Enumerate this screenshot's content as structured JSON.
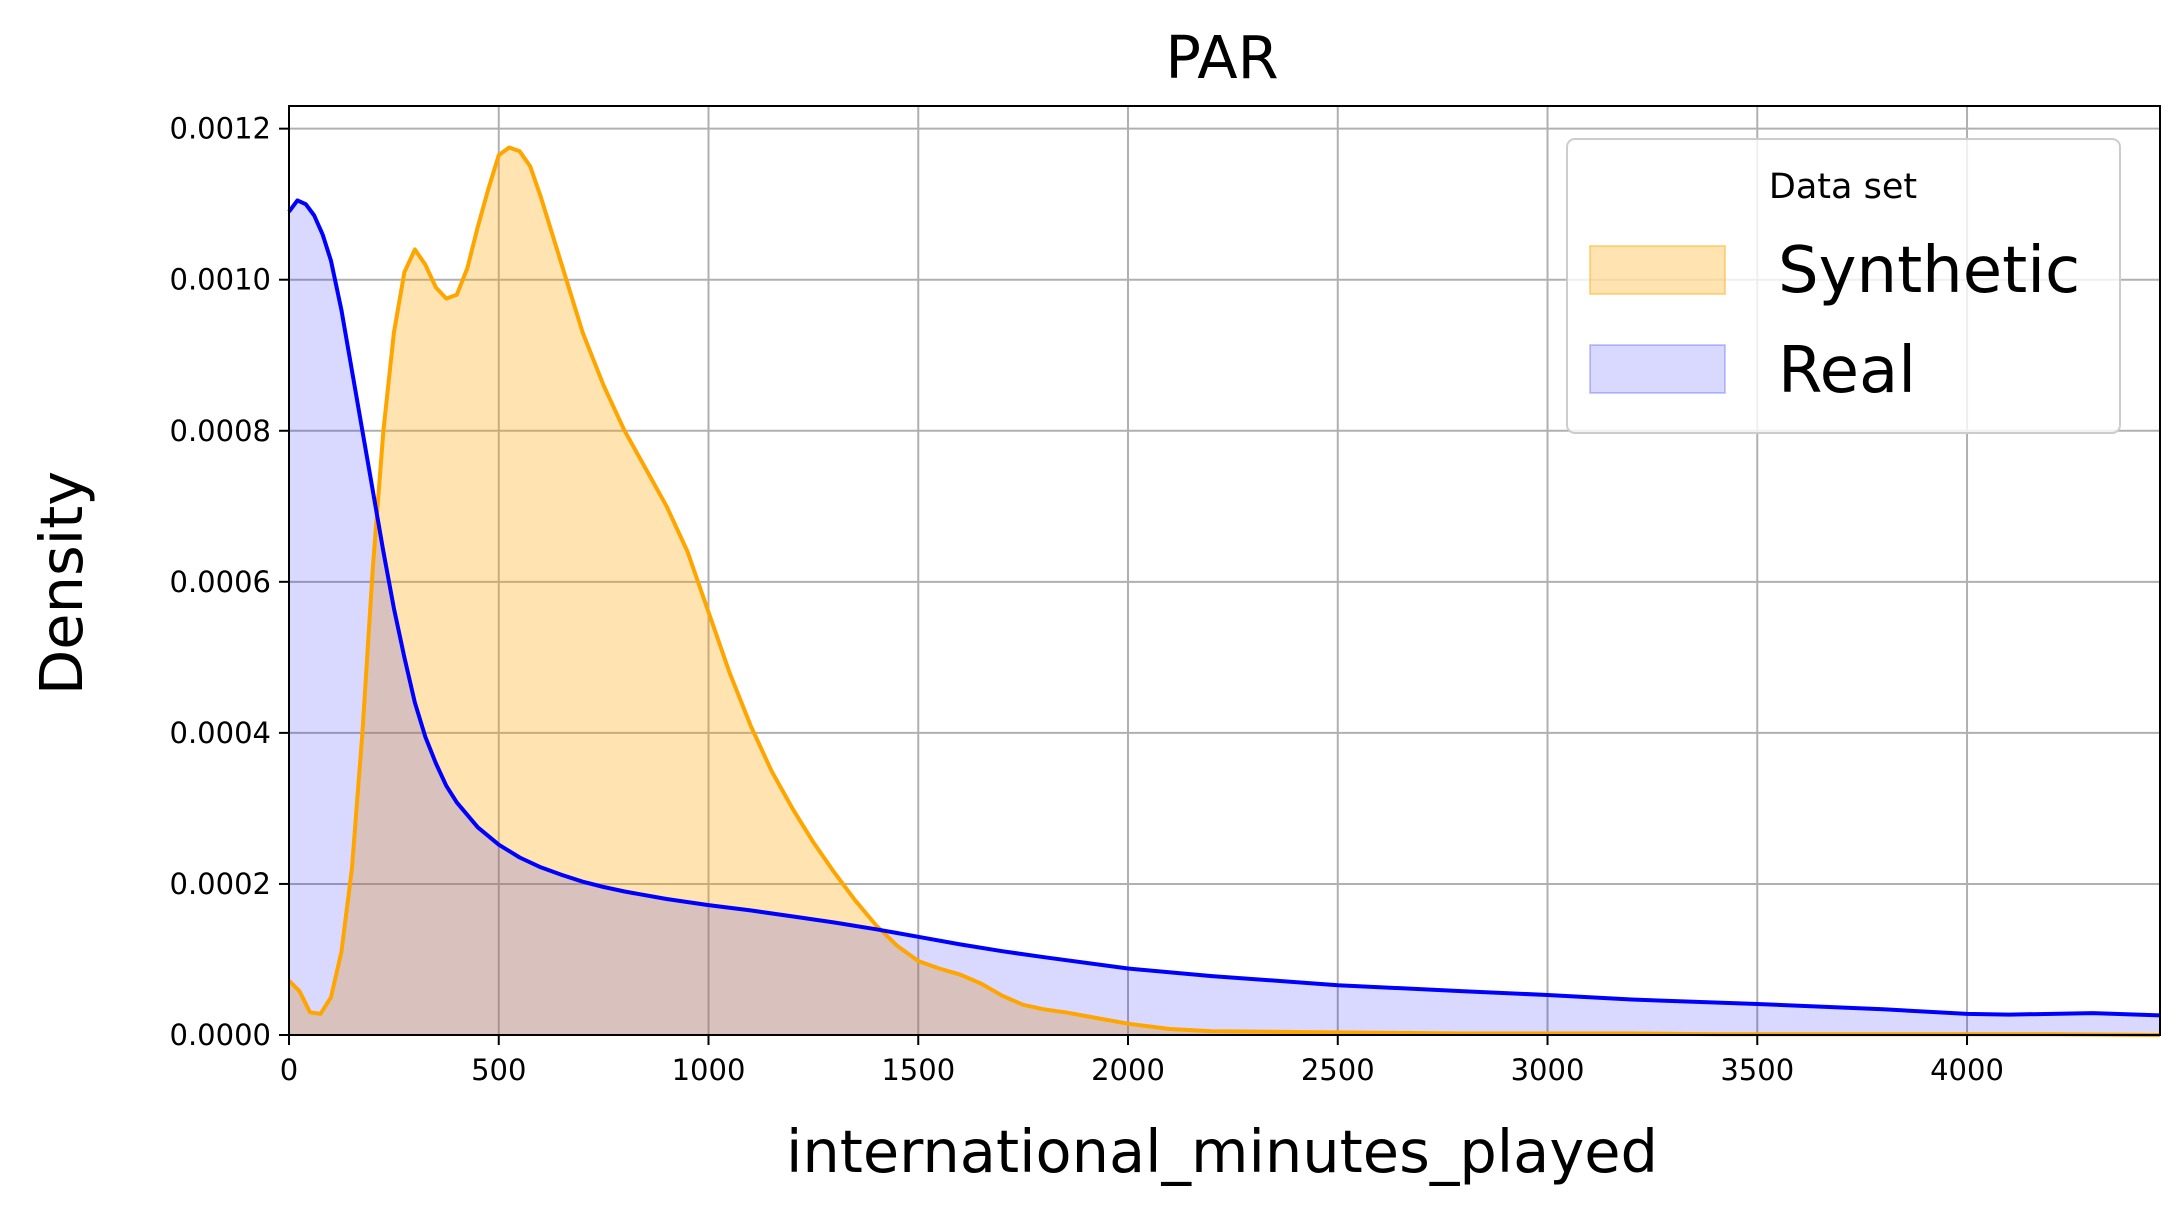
{
  "chart_data": {
    "type": "area",
    "title": "PAR",
    "xlabel": "international_minutes_played",
    "ylabel": "Density",
    "xlim": [
      0,
      4460
    ],
    "ylim": [
      0,
      0.00123
    ],
    "x_ticks": [
      0,
      500,
      1000,
      1500,
      2000,
      2500,
      3000,
      3500,
      4000
    ],
    "x_tick_labels": [
      "0",
      "500",
      "1000",
      "1500",
      "2000",
      "2500",
      "3000",
      "3500",
      "4000"
    ],
    "y_ticks": [
      0,
      0.0002,
      0.0004,
      0.0006,
      0.0008,
      0.001,
      0.0012
    ],
    "y_tick_labels": [
      "0.0000",
      "0.0002",
      "0.0004",
      "0.0006",
      "0.0008",
      "0.0010",
      "0.0012"
    ],
    "grid": true,
    "legend": {
      "title": "Data set",
      "position": "top-right",
      "entries": [
        "Synthetic",
        "Real"
      ]
    },
    "series": [
      {
        "name": "Synthetic",
        "color": "#FFA500",
        "fill": "#FFA500",
        "fill_opacity": 0.3,
        "x": [
          0,
          25,
          50,
          75,
          100,
          125,
          150,
          175,
          200,
          225,
          250,
          275,
          300,
          325,
          350,
          375,
          400,
          425,
          450,
          475,
          500,
          525,
          550,
          575,
          600,
          650,
          700,
          750,
          800,
          850,
          900,
          950,
          1000,
          1050,
          1100,
          1150,
          1200,
          1250,
          1300,
          1350,
          1400,
          1450,
          1500,
          1550,
          1600,
          1650,
          1700,
          1750,
          1800,
          1850,
          1900,
          1950,
          2000,
          2100,
          2200,
          2400,
          2600,
          2800,
          3000,
          3200,
          3400,
          3600,
          3800,
          4000,
          4200,
          4460
        ],
        "y": [
          7.2e-05,
          5.8e-05,
          3e-05,
          2.8e-05,
          5e-05,
          0.00011,
          0.00022,
          0.0004,
          0.00062,
          0.0008,
          0.00093,
          0.00101,
          0.00104,
          0.00102,
          0.00099,
          0.000975,
          0.00098,
          0.001015,
          0.00107,
          0.00112,
          0.001165,
          0.001175,
          0.00117,
          0.00115,
          0.00111,
          0.00102,
          0.00093,
          0.00086,
          0.0008,
          0.00075,
          0.0007,
          0.00064,
          0.00056,
          0.00048,
          0.00041,
          0.00035,
          0.0003,
          0.000255,
          0.000215,
          0.000178,
          0.000145,
          0.000118,
          9.8e-05,
          8.8e-05,
          8e-05,
          6.8e-05,
          5.2e-05,
          4e-05,
          3.4e-05,
          3e-05,
          2.5e-05,
          2e-05,
          1.5e-05,
          8e-06,
          5e-06,
          4e-06,
          3e-06,
          2e-06,
          2e-06,
          2e-06,
          1e-06,
          1e-06,
          1e-06,
          1e-06,
          1e-06,
          0.0
        ]
      },
      {
        "name": "Real",
        "color": "#0000FF",
        "fill": "#0000FF",
        "fill_opacity": 0.15,
        "x": [
          0,
          20,
          40,
          60,
          80,
          100,
          125,
          150,
          175,
          200,
          225,
          250,
          275,
          300,
          325,
          350,
          375,
          400,
          450,
          500,
          550,
          600,
          650,
          700,
          750,
          800,
          900,
          1000,
          1100,
          1200,
          1300,
          1400,
          1500,
          1600,
          1700,
          1800,
          2000,
          2200,
          2500,
          2800,
          3000,
          3200,
          3500,
          3800,
          4000,
          4100,
          4300,
          4460
        ],
        "y": [
          0.00109,
          0.001105,
          0.0011,
          0.001085,
          0.00106,
          0.001025,
          0.00096,
          0.00088,
          0.0008,
          0.00072,
          0.00064,
          0.000565,
          0.0005,
          0.00044,
          0.000395,
          0.00036,
          0.00033,
          0.000308,
          0.000275,
          0.000252,
          0.000235,
          0.000222,
          0.000212,
          0.000203,
          0.000196,
          0.00019,
          0.00018,
          0.000172,
          0.000165,
          0.000157,
          0.000149,
          0.00014,
          0.00013,
          0.00012,
          0.000111,
          0.000103,
          8.8e-05,
          7.8e-05,
          6.6e-05,
          5.8e-05,
          5.3e-05,
          4.7e-05,
          4.1e-05,
          3.4e-05,
          2.8e-05,
          2.7e-05,
          2.9e-05,
          2.6e-05
        ]
      }
    ]
  }
}
